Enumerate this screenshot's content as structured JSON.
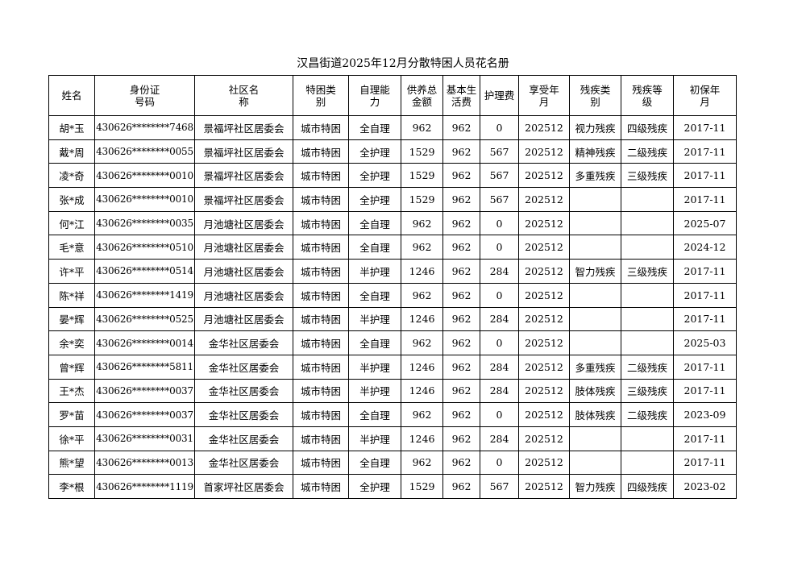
{
  "header": {
    "title": "汉昌街道2025年12月分散特困人员花名册"
  },
  "table": {
    "columns": [
      "姓名",
      "身份证号码",
      "社区名称",
      "特困类别",
      "自理能力",
      "供养总金额",
      "基本生活费",
      "护理费",
      "享受年月",
      "残疾类别",
      "残疾等级",
      "初保年月"
    ],
    "rows": [
      [
        "胡*玉",
        "430626********7468",
        "景福坪社区居委会",
        "城市特困",
        "全自理",
        962,
        962,
        0,
        202512,
        "视力残疾",
        "四级残疾",
        "2017-11"
      ],
      [
        "戴*周",
        "430626********0055",
        "景福坪社区居委会",
        "城市特困",
        "全护理",
        1529,
        962,
        567,
        202512,
        "精神残疾",
        "二级残疾",
        "2017-11"
      ],
      [
        "凌*奇",
        "430626********0010",
        "景福坪社区居委会",
        "城市特困",
        "全护理",
        1529,
        962,
        567,
        202512,
        "多重残疾",
        "三级残疾",
        "2017-11"
      ],
      [
        "张*成",
        "430626********0010",
        "景福坪社区居委会",
        "城市特困",
        "全护理",
        1529,
        962,
        567,
        202512,
        null,
        null,
        "2017-11"
      ],
      [
        "何*江",
        "430626********0035",
        "月池塘社区居委会",
        "城市特困",
        "全自理",
        962,
        962,
        0,
        202512,
        null,
        null,
        "2025-07"
      ],
      [
        "毛*意",
        "430626********0510",
        "月池塘社区居委会",
        "城市特困",
        "全自理",
        962,
        962,
        0,
        202512,
        null,
        null,
        "2024-12"
      ],
      [
        "许*平",
        "430626********0514",
        "月池塘社区居委会",
        "城市特困",
        "半护理",
        1246,
        962,
        284,
        202512,
        "智力残疾",
        "三级残疾",
        "2017-11"
      ],
      [
        "陈*祥",
        "430626********1419",
        "月池塘社区居委会",
        "城市特困",
        "全自理",
        962,
        962,
        0,
        202512,
        null,
        null,
        "2017-11"
      ],
      [
        "晏*辉",
        "430626********0525",
        "月池塘社区居委会",
        "城市特困",
        "半护理",
        1246,
        962,
        284,
        202512,
        null,
        null,
        "2017-11"
      ],
      [
        "余*奕",
        "430626********0014",
        "金华社区居委会",
        "城市特困",
        "全自理",
        962,
        962,
        0,
        202512,
        null,
        null,
        "2025-03"
      ],
      [
        "曾*辉",
        "430626********5811",
        "金华社区居委会",
        "城市特困",
        "半护理",
        1246,
        962,
        284,
        202512,
        "多重残疾",
        "二级残疾",
        "2017-11"
      ],
      [
        "王*杰",
        "430626********0037",
        "金华社区居委会",
        "城市特困",
        "半护理",
        1246,
        962,
        284,
        202512,
        "肢体残疾",
        "三级残疾",
        "2017-11"
      ],
      [
        "罗*苗",
        "430626********0037",
        "金华社区居委会",
        "城市特困",
        "全自理",
        962,
        962,
        0,
        202512,
        "肢体残疾",
        "二级残疾",
        "2023-09"
      ],
      [
        "徐*平",
        "430626********0031",
        "金华社区居委会",
        "城市特困",
        "半护理",
        1246,
        962,
        284,
        202512,
        null,
        null,
        "2017-11"
      ],
      [
        "熊*望",
        "430626********0013",
        "金华社区居委会",
        "城市特困",
        "全自理",
        962,
        962,
        0,
        202512,
        null,
        null,
        "2017-11"
      ],
      [
        "李*根",
        "430626********1119",
        "首家坪社区居委会",
        "城市特困",
        "全护理",
        1529,
        962,
        567,
        202512,
        "智力残疾",
        "四级残疾",
        "2023-02"
      ]
    ]
  }
}
